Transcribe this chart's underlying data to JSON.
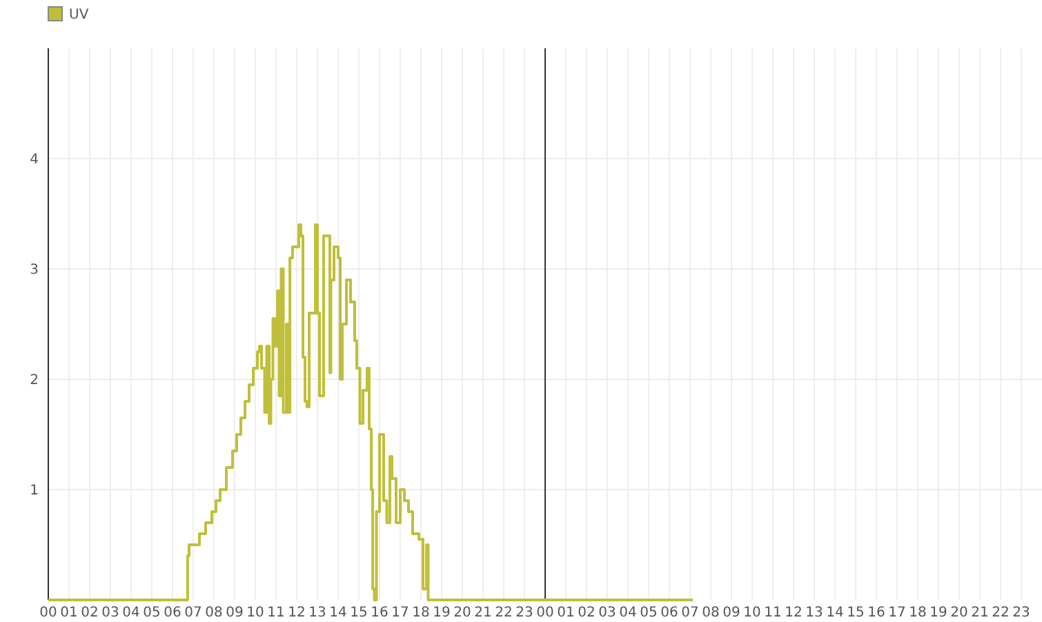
{
  "chart_data": {
    "type": "step",
    "legend": "top left",
    "grid": true,
    "xlim": [
      0,
      48
    ],
    "ylim": [
      0,
      5
    ],
    "yticks": [
      1,
      2,
      3,
      4
    ],
    "xticks": [
      {
        "value": 0,
        "label": "00"
      },
      {
        "value": 1,
        "label": "01"
      },
      {
        "value": 2,
        "label": "02"
      },
      {
        "value": 3,
        "label": "03"
      },
      {
        "value": 4,
        "label": "04"
      },
      {
        "value": 5,
        "label": "05"
      },
      {
        "value": 6,
        "label": "06"
      },
      {
        "value": 7,
        "label": "07"
      },
      {
        "value": 8,
        "label": "08"
      },
      {
        "value": 9,
        "label": "09"
      },
      {
        "value": 10,
        "label": "10"
      },
      {
        "value": 11,
        "label": "11"
      },
      {
        "value": 12,
        "label": "12"
      },
      {
        "value": 13,
        "label": "13"
      },
      {
        "value": 14,
        "label": "14"
      },
      {
        "value": 15,
        "label": "15"
      },
      {
        "value": 16,
        "label": "16"
      },
      {
        "value": 17,
        "label": "17"
      },
      {
        "value": 18,
        "label": "18"
      },
      {
        "value": 19,
        "label": "19"
      },
      {
        "value": 20,
        "label": "20"
      },
      {
        "value": 21,
        "label": "21"
      },
      {
        "value": 22,
        "label": "22"
      },
      {
        "value": 23,
        "label": "23"
      },
      {
        "value": 24,
        "label": "00"
      },
      {
        "value": 25,
        "label": "01"
      },
      {
        "value": 26,
        "label": "02"
      },
      {
        "value": 27,
        "label": "03"
      },
      {
        "value": 28,
        "label": "04"
      },
      {
        "value": 29,
        "label": "05"
      },
      {
        "value": 30,
        "label": "06"
      },
      {
        "value": 31,
        "label": "07"
      },
      {
        "value": 32,
        "label": "08"
      },
      {
        "value": 33,
        "label": "09"
      },
      {
        "value": 34,
        "label": "10"
      },
      {
        "value": 35,
        "label": "11"
      },
      {
        "value": 36,
        "label": "12"
      },
      {
        "value": 37,
        "label": "13"
      },
      {
        "value": 38,
        "label": "14"
      },
      {
        "value": 39,
        "label": "15"
      },
      {
        "value": 40,
        "label": "16"
      },
      {
        "value": 41,
        "label": "17"
      },
      {
        "value": 42,
        "label": "18"
      },
      {
        "value": 43,
        "label": "19"
      },
      {
        "value": 44,
        "label": "20"
      },
      {
        "value": 45,
        "label": "21"
      },
      {
        "value": 46,
        "label": "22"
      },
      {
        "value": 47,
        "label": "23"
      }
    ],
    "ref_lines": [
      {
        "axis": "x",
        "value": 24,
        "color": "#333333"
      }
    ],
    "series": [
      {
        "name": "UV",
        "color": "#c0bf3a",
        "x": [
          0,
          6.73,
          6.8,
          7.3,
          7.6,
          7.9,
          8.1,
          8.3,
          8.6,
          8.9,
          9.1,
          9.3,
          9.5,
          9.7,
          9.9,
          10.1,
          10.2,
          10.3,
          10.45,
          10.55,
          10.67,
          10.75,
          10.85,
          10.95,
          11.07,
          11.15,
          11.25,
          11.35,
          11.5,
          11.6,
          11.67,
          11.8,
          12.1,
          12.2,
          12.3,
          12.4,
          12.5,
          12.6,
          12.9,
          13.0,
          13.1,
          13.3,
          13.6,
          13.65,
          13.8,
          14.0,
          14.1,
          14.2,
          14.4,
          14.6,
          14.8,
          14.9,
          15.05,
          15.2,
          15.4,
          15.5,
          15.6,
          15.67,
          15.75,
          15.85,
          16.0,
          16.2,
          16.35,
          16.5,
          16.6,
          16.8,
          17.0,
          17.2,
          17.4,
          17.6,
          17.9,
          18.1,
          18.27,
          18.35,
          18.67,
          31.13
        ],
        "values": [
          0,
          0.4,
          0.5,
          0.6,
          0.7,
          0.8,
          0.9,
          1.0,
          1.2,
          1.35,
          1.5,
          1.65,
          1.8,
          1.95,
          2.1,
          2.25,
          2.3,
          2.1,
          1.7,
          2.3,
          1.6,
          2.0,
          2.55,
          2.3,
          2.8,
          1.85,
          3.0,
          1.7,
          2.5,
          1.7,
          3.1,
          3.2,
          3.4,
          3.3,
          2.2,
          1.8,
          1.75,
          2.6,
          3.4,
          2.6,
          1.85,
          3.3,
          2.06,
          2.9,
          3.2,
          3.1,
          2.0,
          2.5,
          2.9,
          2.7,
          2.35,
          2.1,
          1.6,
          1.9,
          2.1,
          1.55,
          1.0,
          0.1,
          0,
          0.8,
          1.5,
          0.9,
          0.7,
          1.3,
          1.1,
          0.7,
          1.0,
          0.9,
          0.8,
          0.6,
          0.55,
          0.1,
          0.5,
          0,
          0,
          0
        ]
      }
    ]
  }
}
